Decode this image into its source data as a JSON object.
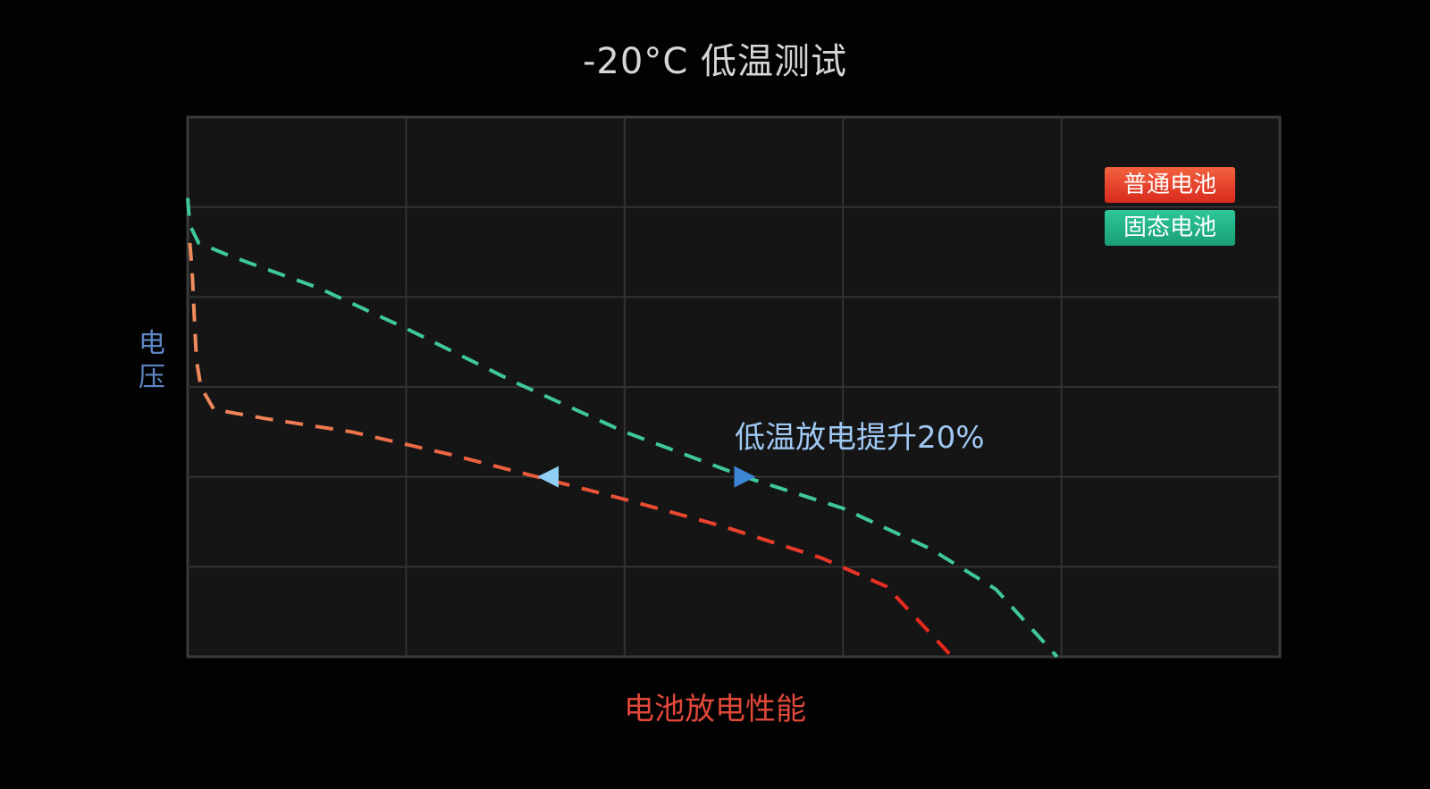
{
  "chart_data": {
    "type": "line",
    "title": "-20°C 低温测试",
    "xlabel": "电池放电性能",
    "ylabel": "电压",
    "xlim": [
      0,
      5
    ],
    "ylim": [
      0,
      6
    ],
    "grid": true,
    "legend_position": "top-right",
    "series": [
      {
        "name": "普通电池",
        "color_start": "#f08a5d",
        "color_end": "#e8261c",
        "style": "dashed",
        "points": [
          [
            0.01,
            4.6
          ],
          [
            0.02,
            4.3
          ],
          [
            0.03,
            3.8
          ],
          [
            0.04,
            3.3
          ],
          [
            0.06,
            3.0
          ],
          [
            0.12,
            2.75
          ],
          [
            0.35,
            2.65
          ],
          [
            0.75,
            2.5
          ],
          [
            1.2,
            2.25
          ],
          [
            1.6,
            2.0
          ],
          [
            2.0,
            1.75
          ],
          [
            2.45,
            1.45
          ],
          [
            2.9,
            1.1
          ],
          [
            3.2,
            0.78
          ],
          [
            3.5,
            0.0
          ]
        ]
      },
      {
        "name": "固态电池",
        "color": "#3fc79e",
        "style": "dashed",
        "points": [
          [
            0.0,
            5.1
          ],
          [
            0.01,
            4.8
          ],
          [
            0.05,
            4.6
          ],
          [
            0.2,
            4.45
          ],
          [
            0.6,
            4.1
          ],
          [
            1.0,
            3.65
          ],
          [
            1.5,
            3.05
          ],
          [
            2.0,
            2.5
          ],
          [
            2.55,
            2.0
          ],
          [
            3.0,
            1.65
          ],
          [
            3.4,
            1.2
          ],
          [
            3.7,
            0.75
          ],
          [
            3.98,
            0.0
          ]
        ]
      }
    ],
    "annotation": {
      "text": "低温放电提升20%",
      "arrow_from": [
        1.6,
        2.0
      ],
      "arrow_to": [
        2.6,
        2.0
      ]
    }
  },
  "colors": {
    "background": "#020202",
    "plot_background": "#151515",
    "grid": "#333333",
    "arrow": "#6ab8ee"
  }
}
